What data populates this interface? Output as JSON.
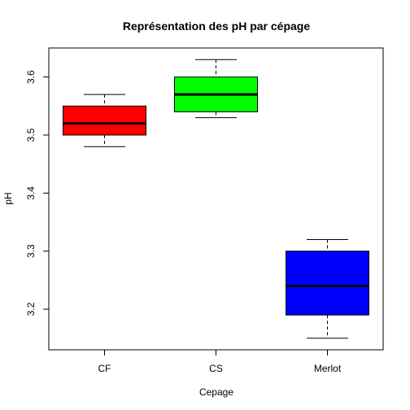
{
  "chart_data": {
    "type": "box",
    "title": "Représentation des pH par cépage",
    "xlabel": "Cepage",
    "ylabel": "pH",
    "ylim": [
      3.13,
      3.65
    ],
    "yticks": [
      "3.2",
      "3.3",
      "3.4",
      "3.5",
      "3.6"
    ],
    "categories": [
      "CF",
      "CS",
      "Merlot"
    ],
    "series": [
      {
        "category": "CF",
        "min": 3.48,
        "q1": 3.5,
        "median": 3.52,
        "q3": 3.55,
        "max": 3.57,
        "color": "#ff0000"
      },
      {
        "category": "CS",
        "min": 3.53,
        "q1": 3.54,
        "median": 3.57,
        "q3": 3.6,
        "max": 3.63,
        "color": "#00ff00"
      },
      {
        "category": "Merlot",
        "min": 3.15,
        "q1": 3.19,
        "median": 3.24,
        "q3": 3.3,
        "max": 3.32,
        "color": "#0000ff"
      }
    ],
    "grid": false,
    "legend": "none"
  }
}
